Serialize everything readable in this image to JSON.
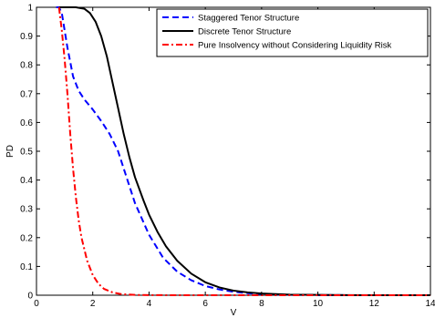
{
  "chart_data": {
    "type": "line",
    "xlabel": "V",
    "ylabel": "PD",
    "xlim": [
      0,
      14
    ],
    "ylim": [
      0,
      1
    ],
    "xticks": [
      "0",
      "2",
      "4",
      "6",
      "8",
      "10",
      "12",
      "14"
    ],
    "yticks": [
      "0",
      "0.1",
      "0.2",
      "0.3",
      "0.4",
      "0.5",
      "0.6",
      "0.7",
      "0.8",
      "0.9",
      "1"
    ],
    "grid": false,
    "legend_position": "top-right",
    "series": [
      {
        "name": "Staggered Tenor Structure",
        "color": "#0000ff",
        "style": "dashed",
        "x": [
          0.7,
          0.8,
          0.9,
          1.0,
          1.1,
          1.2,
          1.3,
          1.5,
          1.7,
          2.0,
          2.3,
          2.6,
          2.9,
          3.1,
          3.3,
          3.5,
          4.0,
          4.5,
          5.0,
          5.5,
          6.0,
          6.5,
          7.0,
          7.5,
          8.0,
          9.0,
          10.0,
          11.0,
          12.0,
          13.0,
          14.0
        ],
        "y": [
          1.0,
          1.0,
          0.98,
          0.92,
          0.86,
          0.81,
          0.76,
          0.71,
          0.68,
          0.645,
          0.605,
          0.56,
          0.5,
          0.44,
          0.38,
          0.32,
          0.21,
          0.13,
          0.082,
          0.052,
          0.032,
          0.02,
          0.012,
          0.007,
          0.004,
          0.0015,
          0.0005,
          0.0002,
          0.0,
          0.0,
          0.0
        ]
      },
      {
        "name": "Discrete Tenor Structure",
        "color": "#000000",
        "style": "solid",
        "x": [
          0.8,
          1.0,
          1.4,
          1.7,
          1.9,
          2.1,
          2.3,
          2.5,
          2.7,
          2.9,
          3.1,
          3.3,
          3.5,
          3.8,
          4.0,
          4.3,
          4.6,
          5.0,
          5.5,
          6.0,
          6.5,
          7.0,
          7.5,
          8.0,
          9.0,
          10.0,
          11.0,
          12.0,
          13.0,
          14.0
        ],
        "y": [
          1.0,
          1.0,
          1.0,
          0.995,
          0.98,
          0.95,
          0.9,
          0.83,
          0.74,
          0.65,
          0.56,
          0.48,
          0.41,
          0.33,
          0.28,
          0.22,
          0.17,
          0.12,
          0.075,
          0.045,
          0.027,
          0.016,
          0.01,
          0.006,
          0.002,
          0.001,
          0.0004,
          0.0002,
          0.0,
          0.0
        ]
      },
      {
        "name": "Pure Insolvency without Considering Liquidity Risk",
        "color": "#ff0000",
        "style": "dash-dot",
        "x": [
          0.8,
          0.9,
          1.0,
          1.1,
          1.2,
          1.3,
          1.4,
          1.5,
          1.6,
          1.8,
          2.0,
          2.2,
          2.4,
          2.7,
          3.0,
          3.5,
          4.0,
          5.0,
          6.0,
          7.0,
          8.0,
          9.0,
          10.0,
          11.0,
          12.0,
          13.0,
          14.0
        ],
        "y": [
          1.0,
          0.92,
          0.82,
          0.7,
          0.56,
          0.44,
          0.34,
          0.26,
          0.2,
          0.12,
          0.07,
          0.04,
          0.022,
          0.01,
          0.004,
          0.001,
          0.0004,
          0.0,
          0.0,
          0.0,
          0.0,
          0.0,
          0.0,
          0.0,
          0.0,
          0.0,
          0.0
        ]
      }
    ]
  }
}
